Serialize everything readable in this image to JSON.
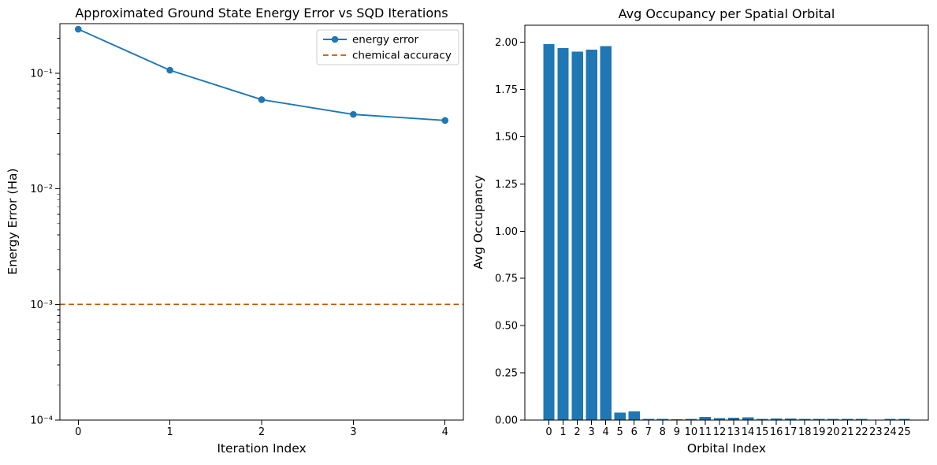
{
  "figure": {
    "background": "#ffffff",
    "text_color": "#000000",
    "spine_color": "#000000"
  },
  "chart_data": [
    {
      "id": "energy-error-vs-iterations",
      "type": "line",
      "title": "Approximated Ground State Energy Error vs SQD Iterations",
      "xlabel": "Iteration Index",
      "ylabel": "Energy Error (Ha)",
      "yscale": "log",
      "grid": false,
      "xlim": [
        -0.2,
        4.2
      ],
      "ylim": [
        0.0001,
        0.268
      ],
      "x": [
        0,
        1,
        2,
        3,
        4
      ],
      "series": [
        {
          "name": "energy error",
          "style": "line-marker",
          "marker": "circle",
          "color": "#1f77b4",
          "values": [
            0.24,
            0.106,
            0.059,
            0.044,
            0.039
          ]
        },
        {
          "name": "chemical accuracy",
          "style": "dashed-hline",
          "color": "#bf5700",
          "value": 0.001
        }
      ],
      "xticks": [
        {
          "value": 0,
          "label": "0"
        },
        {
          "value": 1,
          "label": "1"
        },
        {
          "value": 2,
          "label": "2"
        },
        {
          "value": 3,
          "label": "3"
        },
        {
          "value": 4,
          "label": "4"
        }
      ],
      "yticks": [
        {
          "value": 0.1,
          "label": "10⁻¹"
        },
        {
          "value": 0.01,
          "label": "10⁻²"
        },
        {
          "value": 0.001,
          "label": "10⁻³"
        },
        {
          "value": 0.0001,
          "label": "10⁻⁴"
        }
      ],
      "legend": {
        "position": "upper right",
        "entries": [
          "energy error",
          "chemical accuracy"
        ]
      }
    },
    {
      "id": "avg-occupancy-per-spatial-orbital",
      "type": "bar",
      "title": "Avg Occupancy per Spatial Orbital",
      "xlabel": "Orbital Index",
      "ylabel": "Avg Occupancy",
      "grid": false,
      "ylim": [
        0,
        2.09
      ],
      "bar_color": "#1f77b4",
      "categories": [
        "0",
        "1",
        "2",
        "3",
        "4",
        "5",
        "6",
        "7",
        "8",
        "9",
        "10",
        "11",
        "12",
        "13",
        "14",
        "15",
        "16",
        "17",
        "18",
        "19",
        "20",
        "21",
        "22",
        "23",
        "24",
        "25"
      ],
      "values": [
        1.99,
        1.97,
        1.95,
        1.96,
        1.98,
        0.04,
        0.046,
        0.006,
        0.006,
        0.005,
        0.006,
        0.016,
        0.011,
        0.013,
        0.015,
        0.007,
        0.008,
        0.008,
        0.007,
        0.007,
        0.007,
        0.007,
        0.006,
        0.002,
        0.007,
        0.007
      ],
      "yticks": [
        {
          "value": 0.0,
          "label": "0.00"
        },
        {
          "value": 0.25,
          "label": "0.25"
        },
        {
          "value": 0.5,
          "label": "0.50"
        },
        {
          "value": 0.75,
          "label": "0.75"
        },
        {
          "value": 1.0,
          "label": "1.00"
        },
        {
          "value": 1.25,
          "label": "1.25"
        },
        {
          "value": 1.5,
          "label": "1.50"
        },
        {
          "value": 1.75,
          "label": "1.75"
        },
        {
          "value": 2.0,
          "label": "2.00"
        }
      ]
    }
  ]
}
